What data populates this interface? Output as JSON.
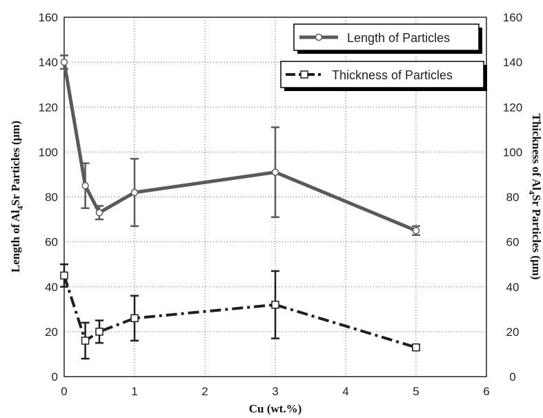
{
  "chart_data": {
    "type": "line",
    "xlabel": "Cu (wt.%)",
    "ylabel_left": {
      "pre": "Length of Al",
      "sub": "4",
      "post": "Sr Particles (μm)"
    },
    "ylabel_right": {
      "pre": "Thickness of Al",
      "sub": "4",
      "post": "Sr Particles (μm)"
    },
    "xlim": [
      0,
      6
    ],
    "ylim": [
      0,
      160
    ],
    "x_ticks": [
      "0",
      "1",
      "2",
      "3",
      "4",
      "5",
      "6"
    ],
    "y_ticks": [
      "0",
      "20",
      "40",
      "60",
      "80",
      "100",
      "120",
      "140",
      "160"
    ],
    "y_ticks_right": [
      "0",
      "20",
      "40",
      "60",
      "80",
      "100",
      "120",
      "140",
      "160"
    ],
    "grid": "dotted",
    "series": [
      {
        "name": "Length of Particles",
        "marker": "circle",
        "line": "solid",
        "color": "#5a5a5a",
        "x": [
          0,
          0.3,
          0.5,
          1,
          3,
          5
        ],
        "y": [
          140,
          85,
          73,
          82,
          91,
          65
        ],
        "err": [
          3,
          10,
          3,
          15,
          20,
          2
        ]
      },
      {
        "name": "Thickness of Particles",
        "marker": "square",
        "line": "dash-dot",
        "color": "#1e1e1e",
        "x": [
          0,
          0.3,
          0.5,
          1,
          3,
          5
        ],
        "y": [
          45,
          16,
          20,
          26,
          32,
          13
        ],
        "err": [
          5,
          8,
          5,
          10,
          15,
          1
        ]
      }
    ]
  }
}
